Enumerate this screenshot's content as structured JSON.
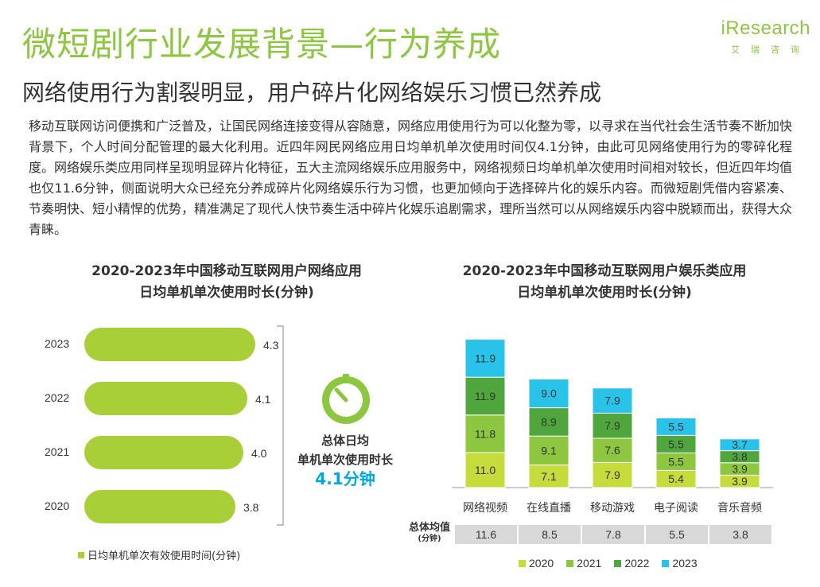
{
  "header": {
    "title": "微短剧行业发展背景—行为养成",
    "subtitle": "网络使用行为割裂明显，用户碎片化网络娱乐习惯已然养成",
    "body": "移动互联网访问便携和广泛普及，让国民网络连接变得从容随意，网络应用使用行为可以化整为零，以寻求在当代社会生活节奏不断加快背景下，个人时间分配管理的最大化利用。近四年网民网络应用日均单机单次使用时间仅4.1分钟，由此可见网络使用行为的零碎化程度。网络娱乐类应用同样呈现明显碎片化特征，五大主流网络娱乐应用服务中，网络视频日均单机单次使用时间相对较长，但近四年均值也仅11.6分钟，侧面说明大众已经充分养成碎片化网络娱乐行为习惯，也更加倾向于选择碎片化的娱乐内容。而微短剧凭借内容紧凑、节奏明快、短小精悍的优势，精准满足了现代人快节奏生活中碎片化娱乐追剧需求，理所当然可以从网络娱乐内容中脱颖而出，获得大众青睐。"
  },
  "logo": {
    "main": "iResearch",
    "sub": "艾瑞咨询"
  },
  "colors": {
    "c2020": "#c5dc3c",
    "c2021": "#8dc63f",
    "c2022": "#4ea63c",
    "c2023": "#29c3ea",
    "accent": "#8dc63f"
  },
  "center": {
    "line1": "总体日均",
    "line2": "单机单次使用时长",
    "value": "4.1分钟"
  },
  "chart_data": [
    {
      "type": "bar",
      "orientation": "horizontal",
      "title_line1": "2020-2023年中国移动互联网用户网络应用",
      "title_line2": "日均单机单次使用时长(分钟)",
      "categories": [
        "2023",
        "2022",
        "2021",
        "2020"
      ],
      "values": [
        4.3,
        4.1,
        4.0,
        3.8
      ],
      "value_labels": [
        "4.3",
        "4.1",
        "4.0",
        "3.8"
      ],
      "legend": "日均单机单次有效使用时间(分钟)"
    },
    {
      "type": "bar",
      "stacked": true,
      "title_line1": "2020-2023年中国移动互联网用户娱乐类应用",
      "title_line2": "日均单机单次使用时长(分钟)",
      "categories": [
        "网络视频",
        "在线直播",
        "移动游戏",
        "电子阅读",
        "音乐音频"
      ],
      "series": [
        {
          "name": "2020",
          "values": [
            11.0,
            7.1,
            7.9,
            5.4,
            3.9
          ]
        },
        {
          "name": "2021",
          "values": [
            11.8,
            9.1,
            7.6,
            5.5,
            3.9
          ]
        },
        {
          "name": "2022",
          "values": [
            11.9,
            8.9,
            7.9,
            5.5,
            3.8
          ]
        },
        {
          "name": "2023",
          "values": [
            11.9,
            9.0,
            7.9,
            5.5,
            3.7
          ]
        }
      ],
      "average_label": "总体均值",
      "average_unit": "(分钟)",
      "averages": [
        "11.6",
        "8.5",
        "7.8",
        "5.5",
        "3.8"
      ]
    }
  ]
}
